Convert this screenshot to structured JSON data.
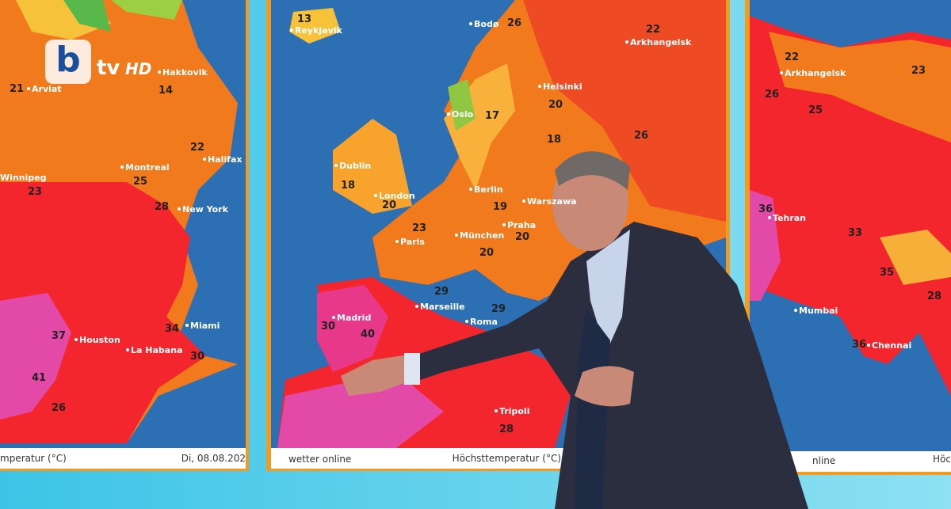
{
  "logo": {
    "brand": "b",
    "channel": "tv",
    "quality": "HD"
  },
  "panels": [
    {
      "footer_left": "mperatur (°C)",
      "footer_right": "Di, 08.08.202",
      "places": [
        {
          "name": "Arviat",
          "temp": 21
        },
        {
          "name": "Hakkovik",
          "temp": 14
        },
        {
          "name": "Winnipeg",
          "temp": 23
        },
        {
          "name": "Montreal",
          "temp": 25
        },
        {
          "name": "Halifax",
          "temp": 22
        },
        {
          "name": "New York",
          "temp": 28
        },
        {
          "name": "Miami",
          "temp": 34
        },
        {
          "name": "Houston",
          "temp": 37
        },
        {
          "name": "La Habana",
          "temp": 30
        },
        {
          "temp": 41
        },
        {
          "temp": 26
        }
      ]
    },
    {
      "footer_brand": "wetter online",
      "footer_right": "Höchsttemperatur (°C)",
      "places": [
        {
          "name": "Reykjavik",
          "temp": 13
        },
        {
          "name": "Bodø",
          "temp": 26
        },
        {
          "name": "Arkhangelsk",
          "temp": 22
        },
        {
          "name": "Oslo",
          "temp": 17
        },
        {
          "name": "Helsinki",
          "temp": 20
        },
        {
          "name": "Dublin",
          "temp": 18
        },
        {
          "name": "London",
          "temp": 20
        },
        {
          "name": "Berlin",
          "temp": 19
        },
        {
          "name": "Warszawa"
        },
        {
          "name": "Paris",
          "temp": 23
        },
        {
          "name": "München",
          "temp": 20
        },
        {
          "name": "Praha",
          "temp": 20
        },
        {
          "temp": 18
        },
        {
          "temp": 26
        },
        {
          "name": "Madrid",
          "temp": 40
        },
        {
          "temp": 30
        },
        {
          "name": "Marseille",
          "temp": 29
        },
        {
          "name": "Roma",
          "temp": 29
        },
        {
          "name": "Tripoli",
          "temp": 28
        }
      ]
    },
    {
      "footer_brand": "nline",
      "footer_right": "Höc",
      "places": [
        {
          "name": "Arkhangelsk",
          "temp": 22
        },
        {
          "temp": 23
        },
        {
          "temp": 26
        },
        {
          "temp": 25
        },
        {
          "name": "Tehran",
          "temp": 36
        },
        {
          "temp": 33
        },
        {
          "temp": 35
        },
        {
          "name": "Mumbai"
        },
        {
          "name": "Chennai",
          "temp": 36
        },
        {
          "temp": 28
        }
      ]
    }
  ]
}
